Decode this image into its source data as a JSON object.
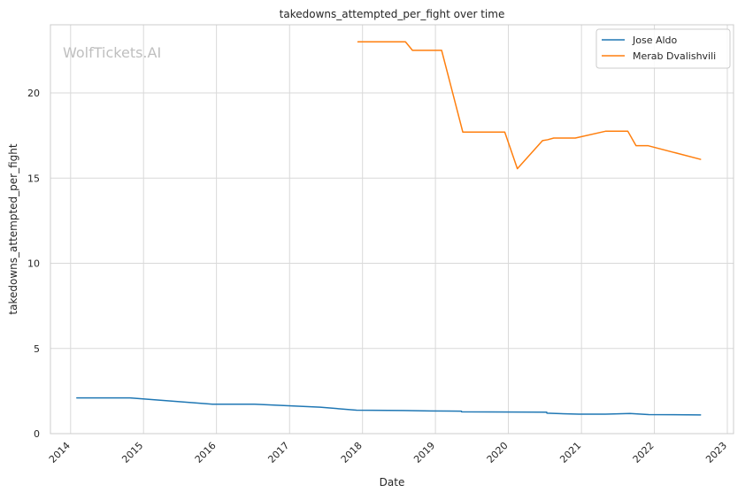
{
  "chart_data": {
    "type": "line",
    "title": "takedowns_attempted_per_fight over time",
    "xlabel": "Date",
    "ylabel": "takedowns_attempted_per_fight",
    "watermark": "WolfTickets.AI",
    "xlim": [
      "2013-09-22",
      "2023-02-01"
    ],
    "ylim": [
      0,
      24
    ],
    "x_ticks": [
      "2014",
      "2015",
      "2016",
      "2017",
      "2018",
      "2019",
      "2020",
      "2021",
      "2022",
      "2023"
    ],
    "y_ticks": [
      0,
      5,
      10,
      15,
      20
    ],
    "grid": true,
    "legend_position": "top-right",
    "series": [
      {
        "name": "Jose Aldo",
        "color": "#1f77b4",
        "points": [
          [
            "2014-02-01",
            2.1
          ],
          [
            "2014-10-25",
            2.1
          ],
          [
            "2015-12-12",
            1.73
          ],
          [
            "2016-07-09",
            1.73
          ],
          [
            "2017-06-03",
            1.55
          ],
          [
            "2017-12-02",
            1.38
          ],
          [
            "2018-07-28",
            1.36
          ],
          [
            "2018-12-08",
            1.33
          ],
          [
            "2019-05-11",
            1.32
          ],
          [
            "2019-05-12",
            1.28
          ],
          [
            "2020-07-11",
            1.26
          ],
          [
            "2020-07-12",
            1.2
          ],
          [
            "2020-12-19",
            1.14
          ],
          [
            "2021-05-01",
            1.14
          ],
          [
            "2021-09-01",
            1.18
          ],
          [
            "2021-12-04",
            1.12
          ],
          [
            "2022-08-20",
            1.1
          ]
        ]
      },
      {
        "name": "Merab Dvalishvili",
        "color": "#ff7f0e",
        "points": [
          [
            "2017-12-09",
            23.0
          ],
          [
            "2018-08-04",
            23.0
          ],
          [
            "2018-09-08",
            22.5
          ],
          [
            "2019-02-01",
            22.5
          ],
          [
            "2019-05-18",
            17.7
          ],
          [
            "2019-12-14",
            17.7
          ],
          [
            "2020-02-15",
            15.55
          ],
          [
            "2020-06-20",
            17.2
          ],
          [
            "2020-07-15",
            17.25
          ],
          [
            "2020-08-15",
            17.35
          ],
          [
            "2020-12-01",
            17.35
          ],
          [
            "2021-05-01",
            17.75
          ],
          [
            "2021-08-21",
            17.75
          ],
          [
            "2021-10-01",
            16.9
          ],
          [
            "2021-12-01",
            16.9
          ],
          [
            "2022-08-20",
            16.1
          ]
        ]
      }
    ]
  }
}
